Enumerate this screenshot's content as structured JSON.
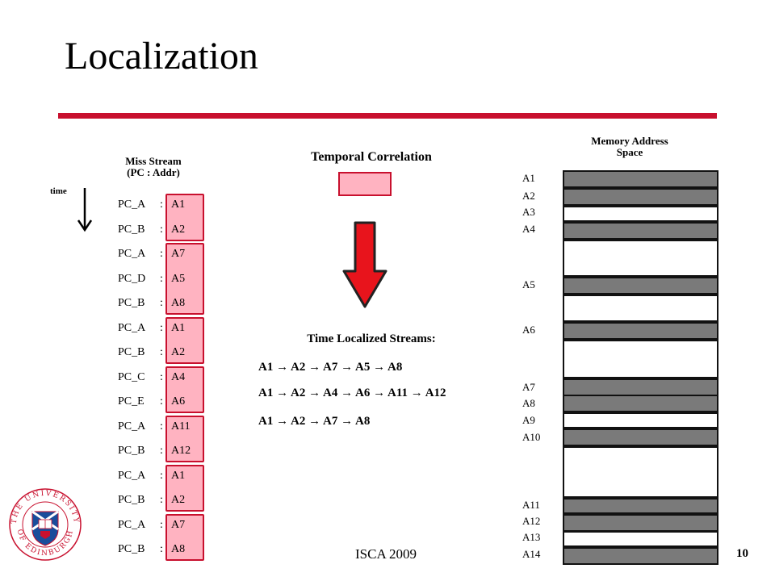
{
  "slide": {
    "title": "Localization",
    "footer": "ISCA 2009",
    "page_number": "10",
    "accent_color": "#c8102e",
    "highlight_color": "#ffb3c1"
  },
  "miss_stream": {
    "title": "Miss Stream",
    "subtitle": "(PC : Addr)",
    "time_label": "time",
    "separator": ":",
    "rows": [
      {
        "pc": "PC_A",
        "addr": "A1"
      },
      {
        "pc": "PC_B",
        "addr": "A2"
      },
      {
        "pc": "PC_A",
        "addr": "A7"
      },
      {
        "pc": "PC_D",
        "addr": "A5"
      },
      {
        "pc": "PC_B",
        "addr": "A8"
      },
      {
        "pc": "PC_A",
        "addr": "A1"
      },
      {
        "pc": "PC_B",
        "addr": "A2"
      },
      {
        "pc": "PC_C",
        "addr": "A4"
      },
      {
        "pc": "PC_E",
        "addr": "A6"
      },
      {
        "pc": "PC_A",
        "addr": "A11"
      },
      {
        "pc": "PC_B",
        "addr": "A12"
      },
      {
        "pc": "PC_A",
        "addr": "A1"
      },
      {
        "pc": "PC_B",
        "addr": "A2"
      },
      {
        "pc": "PC_A",
        "addr": "A7"
      },
      {
        "pc": "PC_B",
        "addr": "A8"
      }
    ]
  },
  "temporal_correlation": {
    "title": "Temporal Correlation"
  },
  "time_localized": {
    "title": "Time Localized Streams:",
    "streams": [
      "A1 → A2 → A7 → A5 → A8",
      "A1 → A2 → A4 → A6 → A11 → A12",
      "A1 → A2 → A7 → A8"
    ]
  },
  "memory": {
    "title_line1": "Memory Address",
    "title_line2": "Space",
    "labels": [
      "A1",
      "A2",
      "A3",
      "A4",
      "A5",
      "A6",
      "A7",
      "A8",
      "A9",
      "A10",
      "A11",
      "A12",
      "A13",
      "A14"
    ],
    "cells": [
      {
        "filled": true
      },
      {
        "filled": true
      },
      {
        "filled": false
      },
      {
        "filled": true
      },
      {
        "filled": false
      },
      {
        "filled": true
      },
      {
        "filled": false
      },
      {
        "filled": true
      },
      {
        "filled": false
      },
      {
        "filled": true
      },
      {
        "filled": true
      },
      {
        "filled": false
      },
      {
        "filled": true
      },
      {
        "filled": false
      },
      {
        "filled": true
      },
      {
        "filled": true
      },
      {
        "filled": false
      },
      {
        "filled": true
      }
    ]
  }
}
